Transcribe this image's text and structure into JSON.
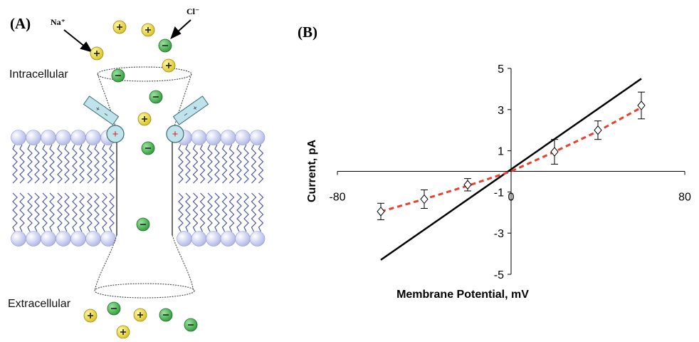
{
  "panel_a": {
    "label": "(A)",
    "na_label": "Na⁺",
    "cl_label": "Cl⁻",
    "intracellular_label": "Intracellular",
    "extracellular_label": "Extracellular",
    "plus_symbol": "+",
    "minus_symbol": "−",
    "colors": {
      "cation": "#e8d63a",
      "anion": "#3fae49",
      "lipid_head": "#c7cdf2",
      "lipid_tail": "#4a55a5",
      "sensor": "#bfe3ea",
      "charge_mark": "#d9232a"
    }
  },
  "panel_b": {
    "label": "(B)"
  },
  "chart_data": {
    "type": "line",
    "xlabel": "Membrane Potential, mV",
    "ylabel": "Current, pA",
    "xlim": [
      -80,
      80
    ],
    "ylim": [
      -5,
      5
    ],
    "x_ticks": [
      -80,
      0,
      80
    ],
    "y_ticks": [
      -5,
      -3,
      -1,
      1,
      3,
      5
    ],
    "series": [
      {
        "style": "solid",
        "color": "#000000",
        "points": [
          [
            -60,
            -4.3
          ],
          [
            60,
            4.5
          ]
        ]
      },
      {
        "style": "dashed",
        "color": "#e8412d",
        "points": [
          [
            -60,
            -1.95
          ],
          [
            -40,
            -1.35
          ],
          [
            -20,
            -0.7
          ],
          [
            0,
            0
          ],
          [
            20,
            0.95
          ],
          [
            40,
            1.95
          ],
          [
            60,
            3.1
          ]
        ]
      },
      {
        "style": "markers",
        "marker": "diamond-open",
        "points": [
          {
            "x": -60,
            "y": -1.95,
            "err": 0.4
          },
          {
            "x": -40,
            "y": -1.35,
            "err": 0.45
          },
          {
            "x": -20,
            "y": -0.65,
            "err": 0.3
          },
          {
            "x": 20,
            "y": 0.95,
            "err": 0.6
          },
          {
            "x": 40,
            "y": 2.0,
            "err": 0.45
          },
          {
            "x": 60,
            "y": 3.2,
            "err": 0.65
          }
        ]
      }
    ]
  }
}
